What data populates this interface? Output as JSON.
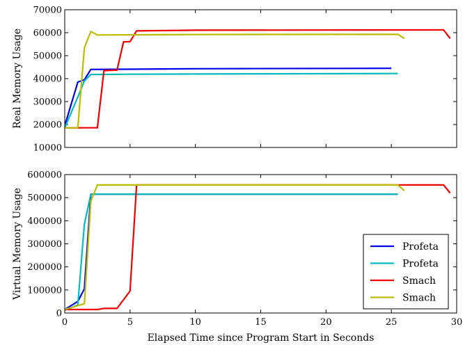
{
  "chart_data": [
    {
      "type": "line",
      "title": "",
      "xlabel": "",
      "ylabel": "Real Memory Usage",
      "xlim": [
        0,
        30
      ],
      "ylim": [
        10000,
        70000
      ],
      "x_ticks": [
        "0",
        "5",
        "10",
        "15",
        "20",
        "25",
        "30"
      ],
      "x_tick_values": [
        0,
        5,
        10,
        15,
        20,
        25,
        30
      ],
      "show_x_tick_labels": false,
      "y_ticks": [
        "10000",
        "20000",
        "30000",
        "40000",
        "50000",
        "60000",
        "70000"
      ],
      "y_tick_values": [
        10000,
        20000,
        30000,
        40000,
        50000,
        60000,
        70000
      ],
      "grid": false,
      "series": [
        {
          "color": "#0000ee",
          "points": [
            [
              0,
              19500
            ],
            [
              1,
              38500
            ],
            [
              1.5,
              39500
            ],
            [
              2,
              44000
            ],
            [
              5,
              44100
            ],
            [
              10,
              44300
            ],
            [
              25,
              44500
            ]
          ]
        },
        {
          "color": "#00bcbc",
          "points": [
            [
              0,
              18500
            ],
            [
              1,
              32000
            ],
            [
              1.5,
              39000
            ],
            [
              2,
              41800
            ],
            [
              5,
              41900
            ],
            [
              10,
              42000
            ],
            [
              25.5,
              42200
            ]
          ]
        },
        {
          "color": "#ee0000",
          "points": [
            [
              0,
              18500
            ],
            [
              2.5,
              18600
            ],
            [
              3,
              43500
            ],
            [
              3.5,
              43600
            ],
            [
              4,
              43700
            ],
            [
              4.5,
              56000
            ],
            [
              5,
              56100
            ],
            [
              5.5,
              60800
            ],
            [
              10,
              61100
            ],
            [
              29,
              61200
            ],
            [
              29.5,
              57500
            ]
          ]
        },
        {
          "color": "#bcbc00",
          "points": [
            [
              0,
              18500
            ],
            [
              1,
              18600
            ],
            [
              1.5,
              53500
            ],
            [
              2,
              60500
            ],
            [
              2.5,
              59000
            ],
            [
              10,
              59200
            ],
            [
              25.5,
              59300
            ],
            [
              26,
              57500
            ]
          ]
        }
      ]
    },
    {
      "type": "line",
      "title": "",
      "xlabel": "Elapsed Time since Program Start in Seconds",
      "ylabel": "Virtual Memory Usage",
      "xlim": [
        0,
        30
      ],
      "ylim": [
        0,
        600000
      ],
      "x_ticks": [
        "0",
        "5",
        "10",
        "15",
        "20",
        "25",
        "30"
      ],
      "x_tick_values": [
        0,
        5,
        10,
        15,
        20,
        25,
        30
      ],
      "show_x_tick_labels": true,
      "y_ticks": [
        "0",
        "100000",
        "200000",
        "300000",
        "400000",
        "500000",
        "600000"
      ],
      "y_tick_values": [
        0,
        100000,
        200000,
        300000,
        400000,
        500000,
        600000
      ],
      "grid": false,
      "legend": {
        "placement": "bottom-right",
        "entries": [
          {
            "label": "Profeta",
            "color": "#0000ee"
          },
          {
            "label": "Profeta",
            "color": "#00bcbc"
          },
          {
            "label": "Smach",
            "color": "#ee0000"
          },
          {
            "label": "Smach",
            "color": "#bcbc00"
          }
        ]
      },
      "series": [
        {
          "name": "Profeta",
          "color": "#0000ee",
          "points": [
            [
              0,
              15000
            ],
            [
              1,
              50000
            ],
            [
              1.5,
              105000
            ],
            [
              2,
              515000
            ],
            [
              5,
              515000
            ],
            [
              25.5,
              515000
            ]
          ]
        },
        {
          "name": "Profeta",
          "color": "#00bcbc",
          "points": [
            [
              0,
              12000
            ],
            [
              1,
              35000
            ],
            [
              1.5,
              385000
            ],
            [
              2,
              515000
            ],
            [
              5,
              515000
            ],
            [
              25.5,
              515000
            ]
          ]
        },
        {
          "name": "Smach",
          "color": "#ee0000",
          "points": [
            [
              0,
              15000
            ],
            [
              2.5,
              15000
            ],
            [
              3,
              20000
            ],
            [
              4,
              20000
            ],
            [
              5,
              95000
            ],
            [
              5.5,
              555000
            ],
            [
              10,
              555000
            ],
            [
              29,
              555000
            ],
            [
              29.5,
              520000
            ]
          ]
        },
        {
          "name": "Smach",
          "color": "#bcbc00",
          "points": [
            [
              0,
              15000
            ],
            [
              1.5,
              40000
            ],
            [
              2,
              485000
            ],
            [
              2.5,
              555000
            ],
            [
              10,
              555000
            ],
            [
              25.5,
              555000
            ],
            [
              26,
              530000
            ]
          ]
        }
      ]
    }
  ]
}
